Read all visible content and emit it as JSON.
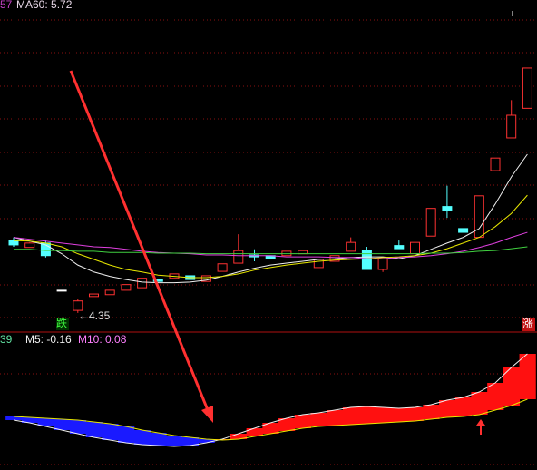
{
  "chart_data": [
    {
      "type": "candlestick",
      "legend": [
        {
          "text": "57",
          "color": "#c040c0"
        },
        {
          "text": "MA60: 5.72",
          "color": "#e8d8e8"
        }
      ],
      "open": [
        5.5,
        5.39,
        5.46,
        4.71,
        4.39,
        4.61,
        4.64,
        4.71,
        4.75,
        4.88,
        4.9,
        4.94,
        4.85,
        5.01,
        5.14,
        5.27,
        5.26,
        5.26,
        5.29,
        5.07,
        5.17,
        5.33,
        5.34,
        5.04,
        5.42,
        5.29,
        5.57,
        6.04,
        5.69,
        5.55,
        6.61,
        7.13,
        7.6
      ],
      "high": [
        5.55,
        5.47,
        5.5,
        4.71,
        4.57,
        4.65,
        4.71,
        4.8,
        4.9,
        4.88,
        4.97,
        4.94,
        4.94,
        5.13,
        5.6,
        5.36,
        5.26,
        5.33,
        5.34,
        5.2,
        5.26,
        5.55,
        5.4,
        5.21,
        5.5,
        5.47,
        6.01,
        6.37,
        5.69,
        6.21,
        6.81,
        7.73,
        8.24
      ],
      "low": [
        5.4,
        5.39,
        5.23,
        4.71,
        4.35,
        4.61,
        4.64,
        4.71,
        4.75,
        4.85,
        4.9,
        4.88,
        4.85,
        5.01,
        5.14,
        5.17,
        5.21,
        5.26,
        5.29,
        5.07,
        5.17,
        5.33,
        5.04,
        5.0,
        5.37,
        5.29,
        5.57,
        5.86,
        5.63,
        5.55,
        6.61,
        7.13,
        7.6
      ],
      "close": [
        5.43,
        5.46,
        5.26,
        4.71,
        4.54,
        4.65,
        4.71,
        4.8,
        4.9,
        4.85,
        4.97,
        4.88,
        4.94,
        5.13,
        5.34,
        5.24,
        5.21,
        5.33,
        5.34,
        5.2,
        5.26,
        5.47,
        5.04,
        5.21,
        5.37,
        5.47,
        6.01,
        5.98,
        5.63,
        6.21,
        6.81,
        7.49,
        8.24
      ],
      "up_color": "#ff3232",
      "down_color": "#54ffff",
      "flat_color": "#ffffff",
      "lines": [
        {
          "color": "#f0f0f0",
          "values": [
            5.55,
            5.49,
            5.43,
            5.29,
            5.11,
            5.0,
            4.93,
            4.88,
            4.84,
            4.83,
            4.83,
            4.84,
            4.87,
            4.93,
            5.0,
            5.06,
            5.11,
            5.14,
            5.17,
            5.2,
            5.21,
            5.23,
            5.24,
            5.24,
            5.21,
            5.26,
            5.36,
            5.46,
            5.55,
            5.69,
            6.08,
            6.51,
            6.87
          ]
        },
        {
          "color": "#e8e800",
          "values": [
            5.5,
            5.49,
            5.46,
            5.4,
            5.29,
            5.2,
            5.11,
            5.04,
            5.0,
            4.95,
            4.93,
            4.91,
            4.91,
            4.93,
            4.97,
            5.03,
            5.07,
            5.11,
            5.14,
            5.17,
            5.19,
            5.2,
            5.21,
            5.23,
            5.24,
            5.26,
            5.3,
            5.37,
            5.46,
            5.55,
            5.72,
            5.93,
            6.22
          ]
        },
        {
          "color": "#e040e0",
          "values": [
            5.55,
            5.52,
            5.49,
            5.46,
            5.43,
            5.4,
            5.39,
            5.36,
            5.33,
            5.31,
            5.3,
            5.29,
            5.27,
            5.27,
            5.26,
            5.26,
            5.26,
            5.24,
            5.24,
            5.24,
            5.23,
            5.23,
            5.21,
            5.21,
            5.23,
            5.24,
            5.26,
            5.29,
            5.33,
            5.39,
            5.46,
            5.55,
            5.63
          ]
        },
        {
          "color": "#40d040",
          "values": [
            5.36,
            5.36,
            5.34,
            5.34,
            5.33,
            5.33,
            5.31,
            5.31,
            5.31,
            5.3,
            5.3,
            5.3,
            5.29,
            5.29,
            5.29,
            5.29,
            5.29,
            5.29,
            5.29,
            5.29,
            5.29,
            5.29,
            5.29,
            5.29,
            5.29,
            5.29,
            5.3,
            5.3,
            5.31,
            5.33,
            5.34,
            5.37,
            5.4
          ]
        }
      ],
      "annotations": [
        {
          "text": "跌"
        },
        {
          "text": "←4.35"
        },
        {
          "text": "涨"
        }
      ],
      "ylim": [
        4.06,
        9.32
      ]
    },
    {
      "type": "band",
      "legend": [
        {
          "text": "39",
          "color": "#60e0a0"
        },
        {
          "text": "M5: -0.16",
          "color": "#f0f0f0"
        },
        {
          "text": "M10: 0.08",
          "color": "#ff80ff"
        }
      ],
      "series": [
        {
          "color": "#f0f0f0",
          "values": [
            -0.01,
            -0.04,
            -0.08,
            -0.12,
            -0.16,
            -0.2,
            -0.23,
            -0.26,
            -0.28,
            -0.29,
            -0.3,
            -0.29,
            -0.26,
            -0.22,
            -0.16,
            -0.1,
            -0.04,
            0.01,
            0.05,
            0.07,
            0.1,
            0.13,
            0.14,
            0.13,
            0.12,
            0.13,
            0.16,
            0.21,
            0.24,
            0.3,
            0.4,
            0.57,
            0.72
          ]
        },
        {
          "color": "#e8e800",
          "values": [
            0.03,
            0.02,
            0.01,
            0.0,
            -0.01,
            -0.03,
            -0.05,
            -0.08,
            -0.12,
            -0.15,
            -0.18,
            -0.2,
            -0.22,
            -0.23,
            -0.22,
            -0.19,
            -0.16,
            -0.13,
            -0.1,
            -0.08,
            -0.07,
            -0.06,
            -0.05,
            -0.04,
            -0.03,
            -0.02,
            0.0,
            0.02,
            0.03,
            0.05,
            0.1,
            0.15,
            0.22
          ]
        }
      ],
      "pos_color": "#ff1010",
      "neg_color": "#1a1aff",
      "ylim": [
        -0.5,
        0.84
      ]
    }
  ]
}
